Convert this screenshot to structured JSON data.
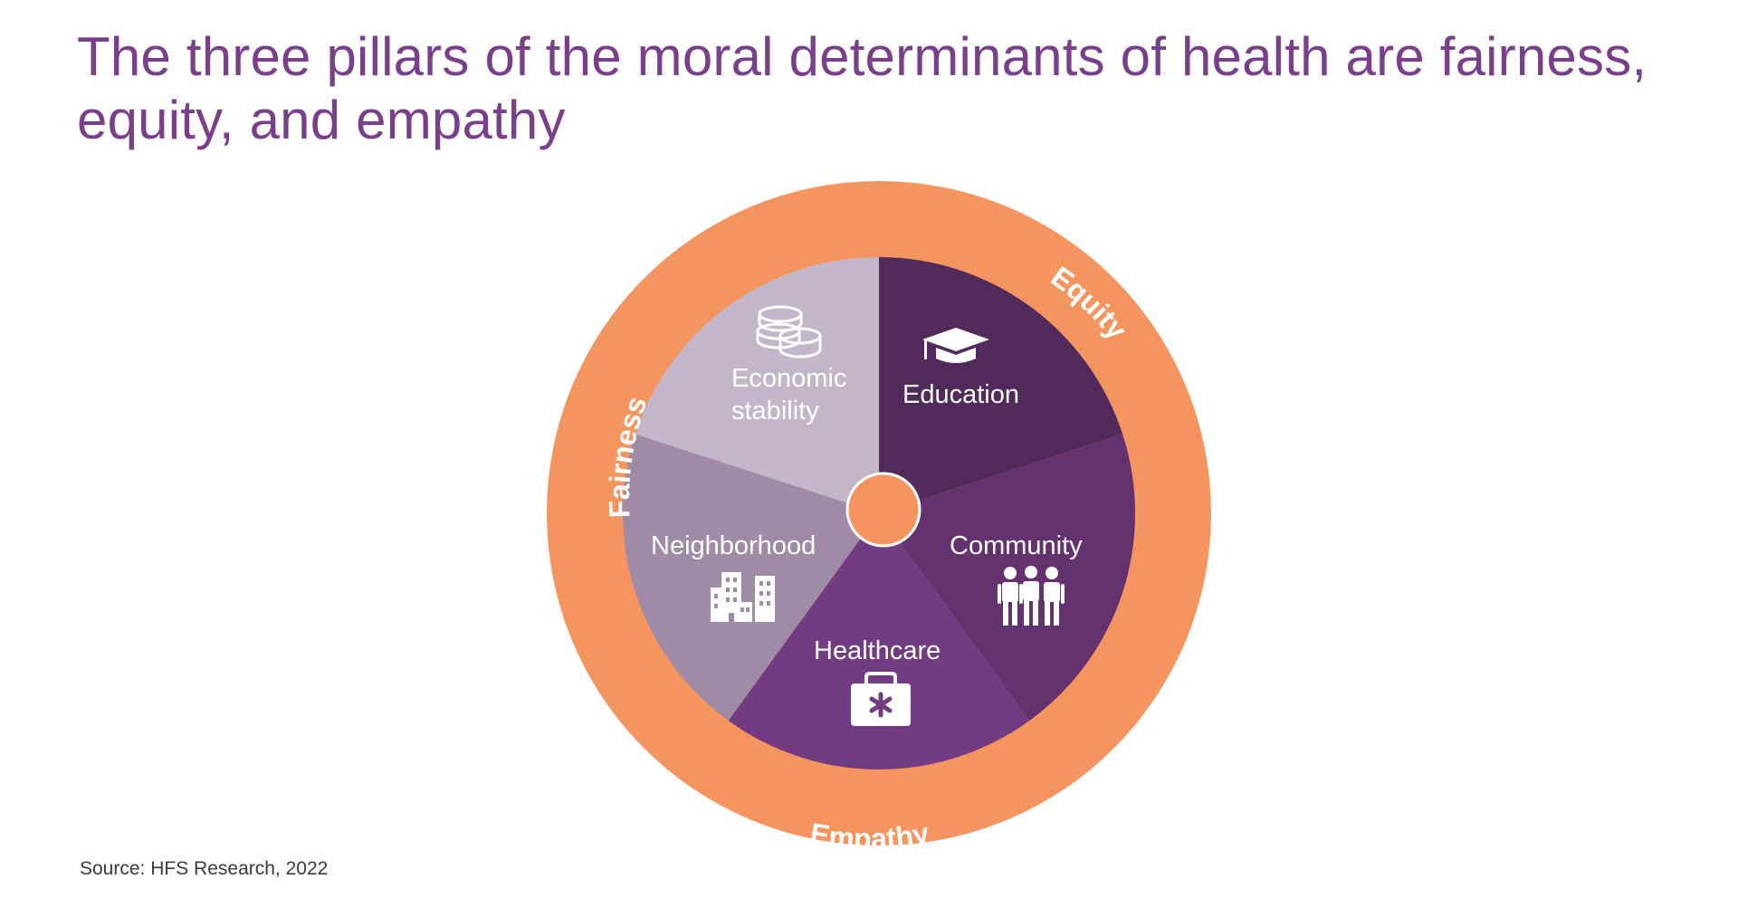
{
  "title": {
    "line1": "The three pillars of the moral determinants of health are fairness,",
    "line2": "equity, and empathy"
  },
  "ring": {
    "color": "#f4955f",
    "pillars": [
      {
        "label": "Fairness"
      },
      {
        "label": "Equity"
      },
      {
        "label": "Empathy"
      }
    ]
  },
  "hub": {
    "color": "#f4955f"
  },
  "segments": [
    {
      "id": "education",
      "lines": [
        "Education"
      ],
      "icon": "graduation-cap-icon",
      "color": "#522a5c"
    },
    {
      "id": "community",
      "lines": [
        "Community"
      ],
      "icon": "people-group-icon",
      "color": "#64336f"
    },
    {
      "id": "healthcare",
      "lines": [
        "Healthcare"
      ],
      "icon": "medical-kit-icon",
      "color": "#733c82"
    },
    {
      "id": "neighborhood",
      "lines": [
        "Neighborhood"
      ],
      "icon": "buildings-icon",
      "color": "#a08ba7"
    },
    {
      "id": "economic-stability",
      "lines": [
        "Economic",
        "stability"
      ],
      "icon": "coins-icon",
      "color": "#c3b6c8"
    }
  ],
  "source": "Source: HFS Research,  2022"
}
